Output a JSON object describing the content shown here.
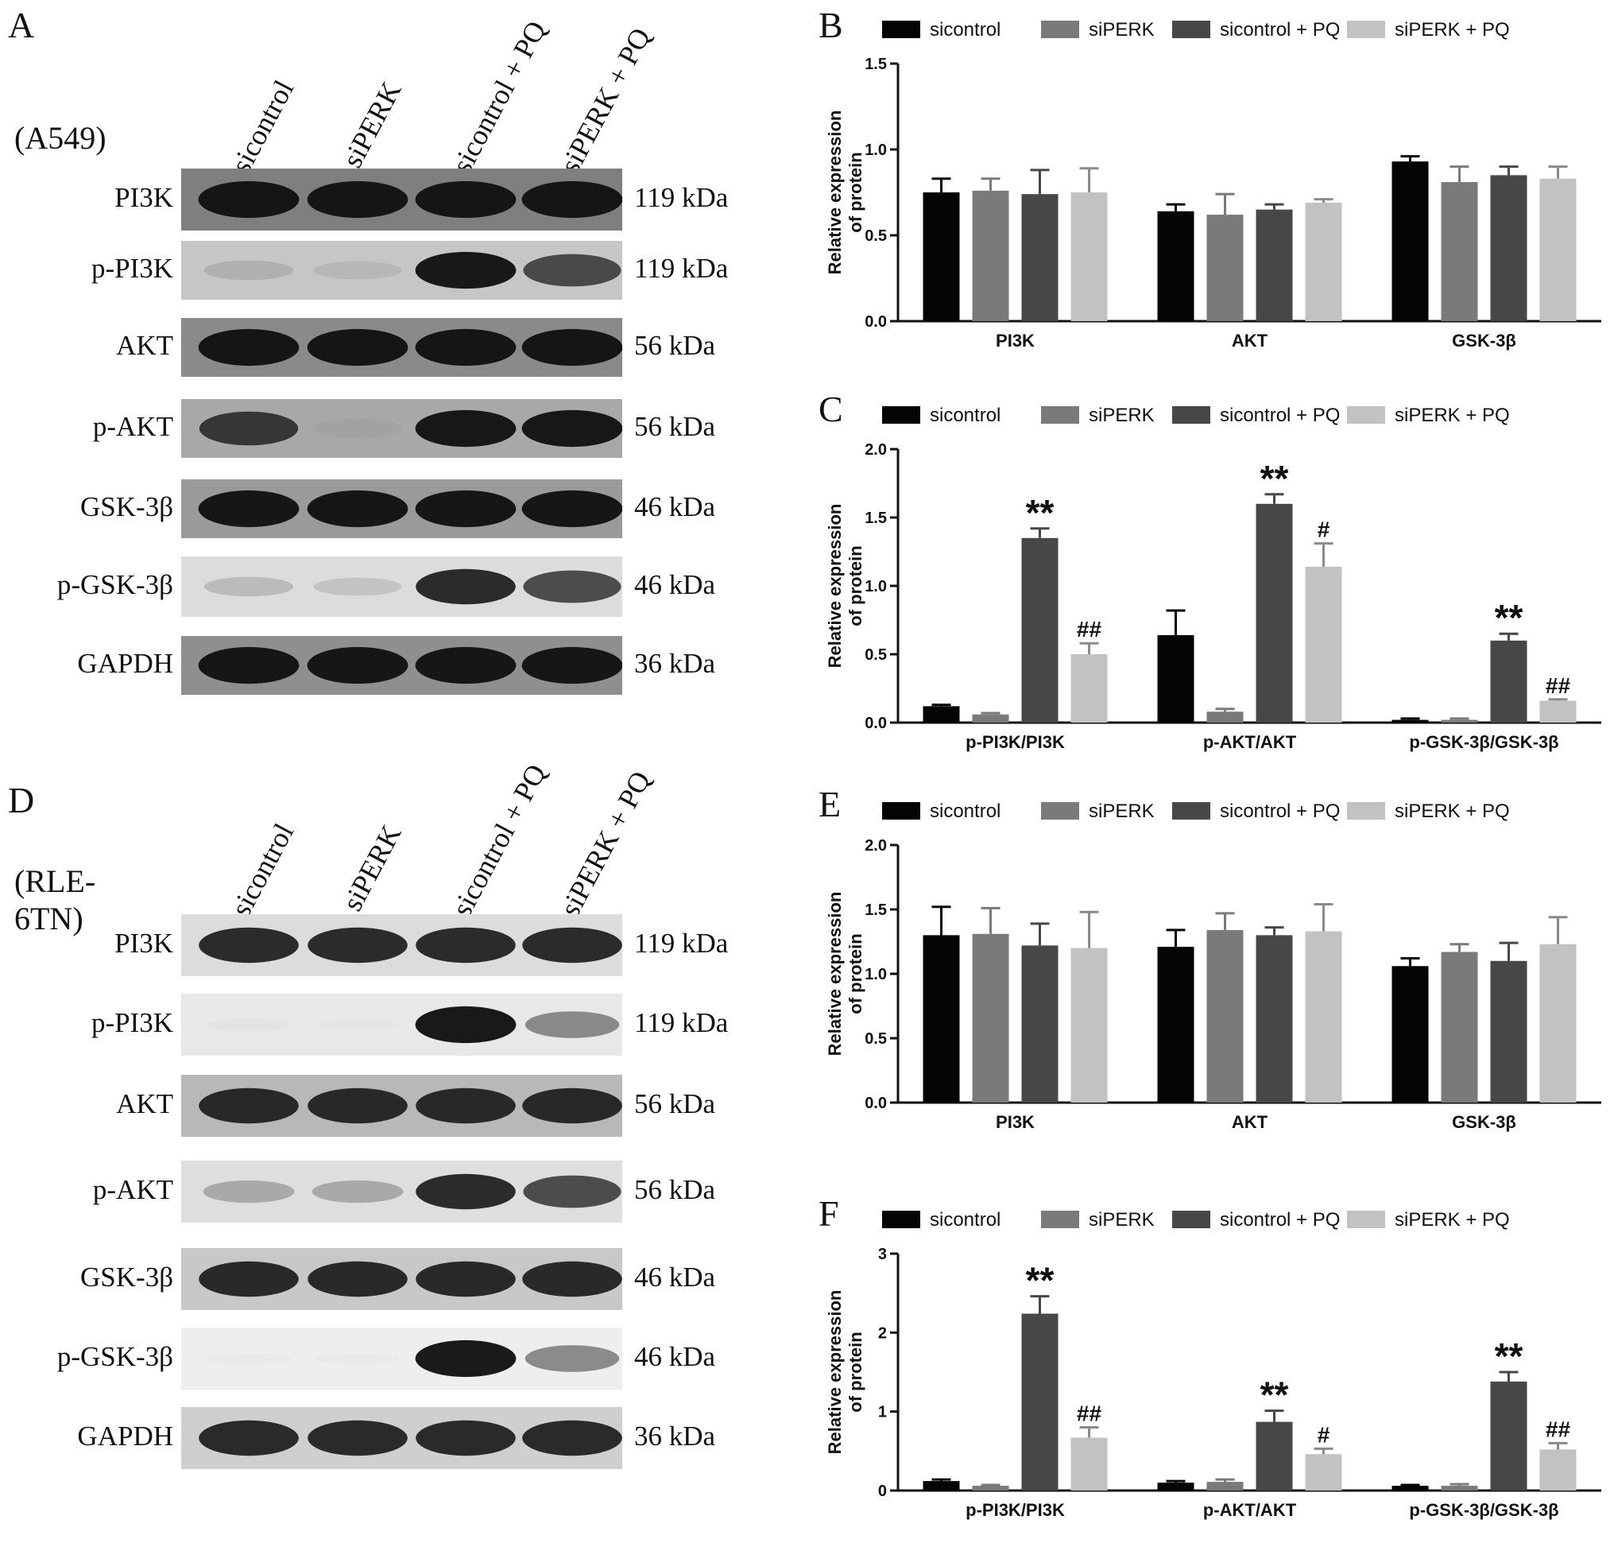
{
  "blots": [
    {
      "panel": "A",
      "cell_line": "(A549)",
      "lanes": [
        "sicontrol",
        "siPERK",
        "sicontrol + PQ",
        "siPERK + PQ"
      ],
      "proteins": [
        {
          "name": "PI3K",
          "kda": "119 kDa",
          "bg": "#7f7f7f",
          "intensity": [
            0.95,
            0.95,
            0.95,
            0.95
          ]
        },
        {
          "name": "p-PI3K",
          "kda": "119 kDa",
          "bg": "#c6c6c6",
          "intensity": [
            0.35,
            0.3,
            0.95,
            0.8
          ]
        },
        {
          "name": "AKT",
          "kda": "56 kDa",
          "bg": "#8a8a8a",
          "intensity": [
            0.95,
            0.95,
            0.95,
            0.95
          ]
        },
        {
          "name": "p-AKT",
          "kda": "56 kDa",
          "bg": "#a8a8a8",
          "intensity": [
            0.85,
            0.35,
            0.95,
            0.95
          ]
        },
        {
          "name": "GSK-3β",
          "kda": "46 kDa",
          "bg": "#9a9a9a",
          "intensity": [
            0.95,
            0.95,
            0.95,
            0.95
          ]
        },
        {
          "name": "p-GSK-3β",
          "kda": "46 kDa",
          "bg": "#dcdcdc",
          "intensity": [
            0.35,
            0.3,
            0.9,
            0.8
          ]
        },
        {
          "name": "GAPDH",
          "kda": "36 kDa",
          "bg": "#8f8f8f",
          "intensity": [
            0.95,
            0.95,
            0.95,
            0.95
          ]
        }
      ]
    },
    {
      "panel": "D",
      "cell_line": "(RLE-6TN)",
      "lanes": [
        "sicontrol",
        "siPERK",
        "sicontrol + PQ",
        "siPERK + PQ"
      ],
      "proteins": [
        {
          "name": "PI3K",
          "kda": "119 kDa",
          "bg": "#dcdcdc",
          "intensity": [
            0.9,
            0.9,
            0.9,
            0.9
          ]
        },
        {
          "name": "p-PI3K",
          "kda": "119 kDa",
          "bg": "#e8e8e8",
          "intensity": [
            0.08,
            0.05,
            0.95,
            0.6
          ]
        },
        {
          "name": "AKT",
          "kda": "56 kDa",
          "bg": "#b8b8b8",
          "intensity": [
            0.9,
            0.9,
            0.9,
            0.9
          ]
        },
        {
          "name": "p-AKT",
          "kda": "56 kDa",
          "bg": "#dedede",
          "intensity": [
            0.45,
            0.45,
            0.9,
            0.8
          ]
        },
        {
          "name": "GSK-3β",
          "kda": "46 kDa",
          "bg": "#c8c8c8",
          "intensity": [
            0.9,
            0.9,
            0.9,
            0.9
          ]
        },
        {
          "name": "p-GSK-3β",
          "kda": "46 kDa",
          "bg": "#eeeeee",
          "intensity": [
            0.06,
            0.06,
            0.95,
            0.6
          ]
        },
        {
          "name": "GAPDH",
          "kda": "36 kDa",
          "bg": "#cfcfcf",
          "intensity": [
            0.9,
            0.9,
            0.9,
            0.9
          ]
        }
      ]
    }
  ],
  "chart_data": [
    {
      "panel": "B",
      "type": "bar",
      "categories": [
        "PI3K",
        "AKT",
        "GSK-3β"
      ],
      "ylabel": "Relative expression of protein",
      "ylim": [
        0,
        1.5
      ],
      "yticks": [
        "0.0",
        "0.5",
        "1.0",
        "1.5"
      ],
      "series": [
        {
          "name": "sicontrol",
          "color": "#050505",
          "values": [
            0.75,
            0.64,
            0.93
          ],
          "err": [
            0.08,
            0.04,
            0.03
          ],
          "marks": [
            "",
            "",
            ""
          ]
        },
        {
          "name": "siPERK",
          "color": "#7a7a7a",
          "values": [
            0.76,
            0.62,
            0.81
          ],
          "err": [
            0.07,
            0.12,
            0.09
          ],
          "marks": [
            "",
            "",
            ""
          ]
        },
        {
          "name": "sicontrol + PQ",
          "color": "#474747",
          "values": [
            0.74,
            0.65,
            0.85
          ],
          "err": [
            0.14,
            0.03,
            0.05
          ],
          "marks": [
            "",
            "",
            ""
          ]
        },
        {
          "name": "siPERK + PQ",
          "color": "#c2c2c2",
          "values": [
            0.75,
            0.69,
            0.83
          ],
          "err": [
            0.14,
            0.02,
            0.07
          ],
          "marks": [
            "",
            "",
            ""
          ]
        }
      ]
    },
    {
      "panel": "C",
      "type": "bar",
      "categories": [
        "p-PI3K/PI3K",
        "p-AKT/AKT",
        "p-GSK-3β/GSK-3β"
      ],
      "ylabel": "Relative expression of protein",
      "ylim": [
        0,
        2.0
      ],
      "yticks": [
        "0.0",
        "0.5",
        "1.0",
        "1.5",
        "2.0"
      ],
      "series": [
        {
          "name": "sicontrol",
          "color": "#050505",
          "values": [
            0.12,
            0.64,
            0.02
          ],
          "err": [
            0.01,
            0.18,
            0.01
          ],
          "marks": [
            "",
            "",
            ""
          ]
        },
        {
          "name": "siPERK",
          "color": "#7a7a7a",
          "values": [
            0.06,
            0.08,
            0.02
          ],
          "err": [
            0.01,
            0.02,
            0.01
          ],
          "marks": [
            "",
            "",
            ""
          ]
        },
        {
          "name": "sicontrol + PQ",
          "color": "#474747",
          "values": [
            1.35,
            1.6,
            0.6
          ],
          "err": [
            0.07,
            0.07,
            0.05
          ],
          "marks": [
            "**",
            "**",
            "**"
          ]
        },
        {
          "name": "siPERK + PQ",
          "color": "#c2c2c2",
          "values": [
            0.5,
            1.14,
            0.16
          ],
          "err": [
            0.08,
            0.17,
            0.01
          ],
          "marks": [
            "##",
            "#",
            "##"
          ]
        }
      ]
    },
    {
      "panel": "E",
      "type": "bar",
      "categories": [
        "PI3K",
        "AKT",
        "GSK-3β"
      ],
      "ylabel": "Relative expression of protein",
      "ylim": [
        0,
        2.0
      ],
      "yticks": [
        "0.0",
        "0.5",
        "1.0",
        "1.5",
        "2.0"
      ],
      "series": [
        {
          "name": "sicontrol",
          "color": "#050505",
          "values": [
            1.3,
            1.21,
            1.06
          ],
          "err": [
            0.22,
            0.13,
            0.06
          ],
          "marks": [
            "",
            "",
            ""
          ]
        },
        {
          "name": "siPERK",
          "color": "#7a7a7a",
          "values": [
            1.31,
            1.34,
            1.17
          ],
          "err": [
            0.2,
            0.13,
            0.06
          ],
          "marks": [
            "",
            "",
            ""
          ]
        },
        {
          "name": "sicontrol + PQ",
          "color": "#474747",
          "values": [
            1.22,
            1.3,
            1.1
          ],
          "err": [
            0.17,
            0.06,
            0.14
          ],
          "marks": [
            "",
            "",
            ""
          ]
        },
        {
          "name": "siPERK + PQ",
          "color": "#c2c2c2",
          "values": [
            1.2,
            1.33,
            1.23
          ],
          "err": [
            0.28,
            0.21,
            0.21
          ],
          "marks": [
            "",
            "",
            ""
          ]
        }
      ]
    },
    {
      "panel": "F",
      "type": "bar",
      "categories": [
        "p-PI3K/PI3K",
        "p-AKT/AKT",
        "p-GSK-3β/GSK-3β"
      ],
      "ylabel": "Relative expression of protein",
      "ylim": [
        0,
        3
      ],
      "yticks": [
        "0",
        "1",
        "2",
        "3"
      ],
      "series": [
        {
          "name": "sicontrol",
          "color": "#050505",
          "values": [
            0.12,
            0.1,
            0.06
          ],
          "err": [
            0.02,
            0.02,
            0.01
          ],
          "marks": [
            "",
            "",
            ""
          ]
        },
        {
          "name": "siPERK",
          "color": "#7a7a7a",
          "values": [
            0.06,
            0.11,
            0.06
          ],
          "err": [
            0.01,
            0.03,
            0.02
          ],
          "marks": [
            "",
            "",
            ""
          ]
        },
        {
          "name": "sicontrol + PQ",
          "color": "#474747",
          "values": [
            2.24,
            0.87,
            1.38
          ],
          "err": [
            0.22,
            0.14,
            0.12
          ],
          "marks": [
            "**",
            "**",
            "**"
          ]
        },
        {
          "name": "siPERK + PQ",
          "color": "#c2c2c2",
          "values": [
            0.67,
            0.46,
            0.52
          ],
          "err": [
            0.13,
            0.07,
            0.08
          ],
          "marks": [
            "##",
            "#",
            "##"
          ]
        }
      ]
    }
  ]
}
